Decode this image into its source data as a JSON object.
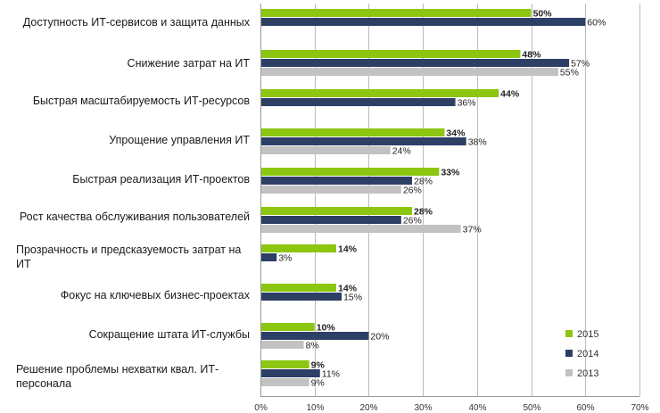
{
  "chart_data": {
    "type": "bar",
    "orientation": "horizontal",
    "title": "",
    "xlabel": "",
    "ylabel": "",
    "xlim": [
      0,
      70
    ],
    "x_ticks": [
      "0%",
      "10%",
      "20%",
      "30%",
      "40%",
      "50%",
      "60%",
      "70%"
    ],
    "grid": true,
    "legend_position": "bottom-right",
    "categories": [
      "Доступность ИТ-сервисов и защита данных",
      "Снижение затрат на ИТ",
      "Быстрая масштабируемость ИТ-ресурсов",
      "Упрощение управления ИТ",
      "Быстрая реализация ИТ-проектов",
      "Рост качества обслуживания пользователей",
      "Прозрачность и предсказуемость затрат на ИТ",
      "Фокус на ключевых бизнес-проектах",
      "Сокращение штата ИТ-службы",
      "Решение проблемы нехватки квал. ИТ-персонала"
    ],
    "series": [
      {
        "name": "2015",
        "color": "#8cc610",
        "bold_labels": true,
        "values": [
          50,
          48,
          44,
          34,
          33,
          28,
          14,
          14,
          10,
          9
        ]
      },
      {
        "name": "2014",
        "color": "#2e3f66",
        "bold_labels": false,
        "values": [
          60,
          57,
          36,
          38,
          28,
          26,
          3,
          15,
          20,
          11
        ]
      },
      {
        "name": "2013",
        "color": "#c2c2c2",
        "bold_labels": false,
        "values": [
          null,
          55,
          null,
          24,
          26,
          37,
          null,
          null,
          8,
          9
        ]
      }
    ]
  }
}
